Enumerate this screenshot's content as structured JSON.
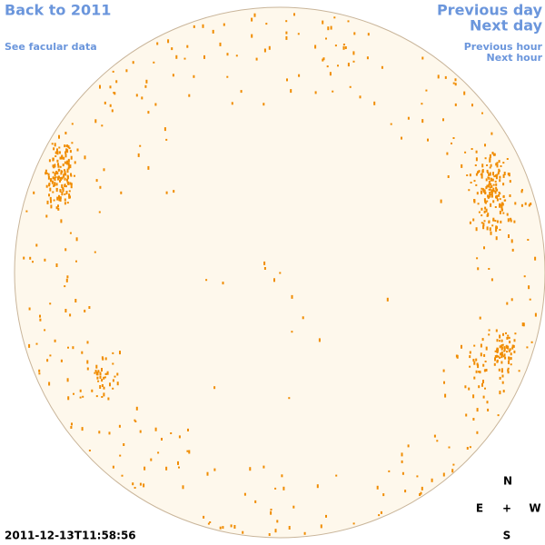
{
  "nav": {
    "back_year": "Back to 2011",
    "facular_link": "See facular data",
    "previous_day": "Previous day",
    "next_day": "Next day",
    "previous_hour": "Previous hour",
    "next_hour": "Next hour"
  },
  "timestamp": "2011-12-13T11:58:56",
  "compass": {
    "north": "N",
    "east": "E",
    "center": "+",
    "west": "W",
    "south": "S"
  }
}
